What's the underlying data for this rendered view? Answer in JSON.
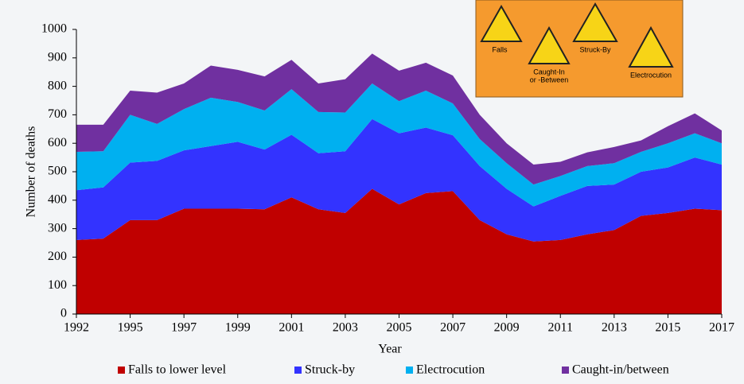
{
  "chart_data": {
    "type": "stacked_area",
    "xlabel": "Year",
    "ylabel": "Number of deaths",
    "categories": [
      "1992",
      null,
      "1995",
      null,
      "1997",
      null,
      "1999",
      null,
      "2001",
      null,
      "2003",
      null,
      "2005",
      null,
      "2007",
      null,
      "2009",
      null,
      "2011",
      null,
      "2013",
      null,
      "2015",
      null,
      "2017"
    ],
    "series": [
      {
        "name": "Falls to lower level",
        "color": "#c00000",
        "values": [
          260,
          265,
          330,
          330,
          370,
          370,
          370,
          368,
          410,
          368,
          355,
          440,
          385,
          425,
          432,
          330,
          280,
          255,
          260,
          280,
          295,
          345,
          355,
          370,
          365
        ]
      },
      {
        "name": "Struck-by",
        "color": "#3333ff",
        "values": [
          175,
          180,
          202,
          208,
          205,
          220,
          235,
          210,
          220,
          197,
          217,
          245,
          250,
          230,
          196,
          190,
          160,
          123,
          155,
          170,
          160,
          155,
          160,
          180,
          160
        ]
      },
      {
        "name": "Electrocution",
        "color": "#00b0f0",
        "values": [
          135,
          127,
          168,
          130,
          145,
          170,
          140,
          137,
          160,
          145,
          136,
          125,
          113,
          130,
          112,
          95,
          90,
          77,
          70,
          70,
          75,
          70,
          85,
          85,
          75
        ]
      },
      {
        "name": "Caught-in/between",
        "color": "#7030a0",
        "values": [
          95,
          93,
          85,
          110,
          90,
          113,
          113,
          120,
          103,
          100,
          117,
          105,
          107,
          98,
          98,
          85,
          70,
          70,
          50,
          48,
          57,
          40,
          60,
          70,
          45
        ]
      }
    ],
    "ylim": [
      0,
      1000
    ],
    "yticks": [
      0,
      100,
      200,
      300,
      400,
      500,
      600,
      700,
      800,
      900,
      1000
    ],
    "legend": "bottom"
  },
  "inset": {
    "labels": [
      "Falls",
      "Caught-In",
      "or -Between",
      "Struck-By",
      "Electrocution"
    ]
  }
}
